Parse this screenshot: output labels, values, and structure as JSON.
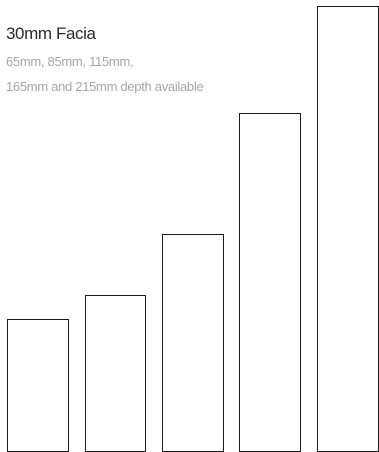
{
  "header": {
    "title": "30mm Facia",
    "line1": "65mm, 85mm, 115mm,",
    "line2": "165mm and 215mm depth available"
  },
  "colors": {
    "title": "#2a2a2a",
    "subtitle": "#a6a6a6",
    "outline": "#1a1a1a"
  },
  "profiles": [
    {
      "depth_mm": 65
    },
    {
      "depth_mm": 85
    },
    {
      "depth_mm": 115
    },
    {
      "depth_mm": 165
    },
    {
      "depth_mm": 215
    }
  ]
}
